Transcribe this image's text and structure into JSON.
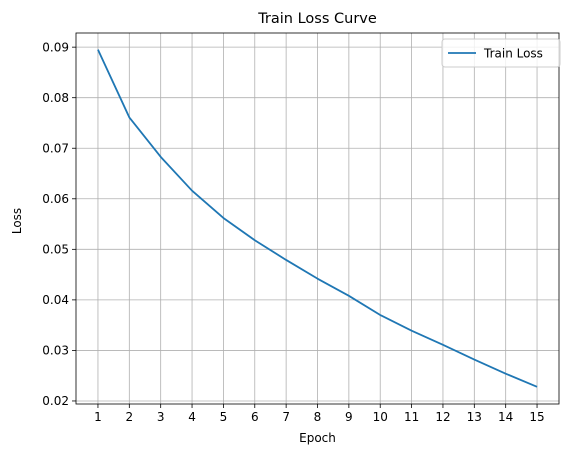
{
  "chart_data": {
    "type": "line",
    "title": "Train Loss Curve",
    "xlabel": "Epoch",
    "ylabel": "Loss",
    "x": [
      1,
      2,
      3,
      4,
      5,
      6,
      7,
      8,
      9,
      10,
      11,
      12,
      13,
      14,
      15
    ],
    "series": [
      {
        "name": "Train Loss",
        "color": "#1f77b4",
        "values": [
          0.0895,
          0.0761,
          0.0683,
          0.0616,
          0.0562,
          0.0518,
          0.0479,
          0.0442,
          0.0408,
          0.037,
          0.0339,
          0.0311,
          0.0282,
          0.0254,
          0.0228
        ]
      }
    ],
    "xticks": [
      "1",
      "2",
      "3",
      "4",
      "5",
      "6",
      "7",
      "8",
      "9",
      "10",
      "11",
      "12",
      "13",
      "14",
      "15"
    ],
    "yticks": [
      "0.02",
      "0.03",
      "0.04",
      "0.05",
      "0.06",
      "0.07",
      "0.08",
      "0.09"
    ],
    "xlim": [
      0.3,
      15.7
    ],
    "ylim": [
      0.0194,
      0.0928
    ],
    "grid": true,
    "legend_position": "top-right",
    "grid_color": "#b0b0b0"
  }
}
